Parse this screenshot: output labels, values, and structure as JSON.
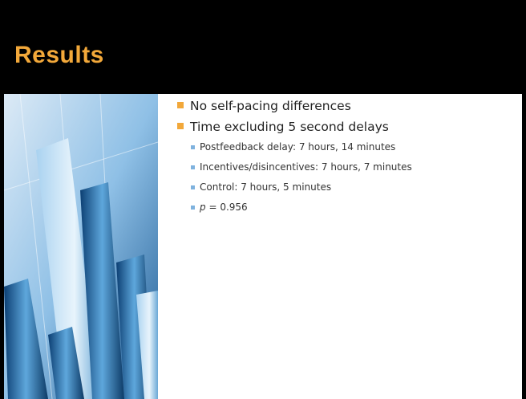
{
  "title": "Results",
  "bullets": [
    {
      "text": "No self-pacing differences",
      "sub": []
    },
    {
      "text": "Time excluding 5 second delays",
      "sub": [
        "Postfeedback delay: 7 hours, 14 minutes",
        "Incentives/disincentives: 7 hours, 7 minutes",
        "Control: 7 hours, 5 minutes",
        {
          "var": "p",
          "rest": "= 0.956"
        }
      ]
    }
  ]
}
